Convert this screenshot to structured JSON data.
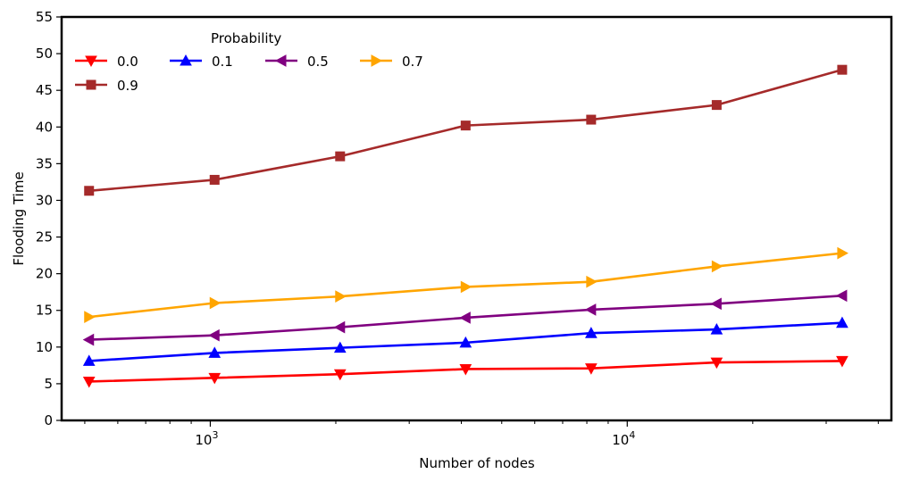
{
  "chart_data": {
    "type": "line",
    "xlabel": "Number of nodes",
    "ylabel": "Flooding Time",
    "xscale": "log",
    "xlim": [
      440,
      43000
    ],
    "ylim": [
      0,
      55
    ],
    "yticks": [
      0,
      5,
      10,
      15,
      20,
      25,
      30,
      35,
      40,
      45,
      50,
      55
    ],
    "xticks": [
      {
        "value": 1000,
        "base": "10",
        "exp": "3"
      },
      {
        "value": 10000,
        "base": "10",
        "exp": "4"
      }
    ],
    "grid": false,
    "legend": {
      "title": "Probability",
      "placement": "top-left",
      "columns": 4
    },
    "x": [
      512,
      1024,
      2048,
      4096,
      8192,
      16384,
      32768
    ],
    "series": [
      {
        "name": "0.0",
        "color": "#ff0000",
        "marker": "triangle-down",
        "values": [
          5.3,
          5.8,
          6.3,
          7.0,
          7.1,
          7.9,
          8.1
        ]
      },
      {
        "name": "0.1",
        "color": "#0000ff",
        "marker": "triangle-up",
        "values": [
          8.1,
          9.2,
          9.9,
          10.6,
          11.9,
          12.4,
          13.3
        ]
      },
      {
        "name": "0.5",
        "color": "#800080",
        "marker": "triangle-left",
        "values": [
          11.0,
          11.6,
          12.7,
          14.0,
          15.1,
          15.9,
          17.0
        ]
      },
      {
        "name": "0.7",
        "color": "#ffa500",
        "marker": "triangle-right",
        "values": [
          14.1,
          16.0,
          16.9,
          18.2,
          18.9,
          21.0,
          22.8
        ]
      },
      {
        "name": "0.9",
        "color": "#a52a2a",
        "marker": "square",
        "values": [
          31.3,
          32.8,
          36.0,
          40.2,
          41.0,
          43.0,
          47.8
        ]
      }
    ]
  }
}
